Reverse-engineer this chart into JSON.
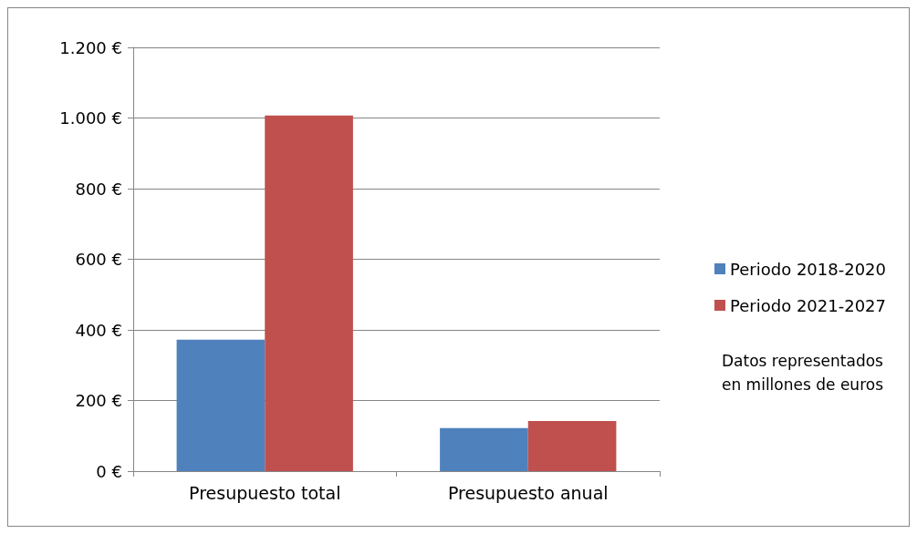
{
  "chart_data": {
    "type": "bar",
    "categories": [
      "Presupuesto total",
      "Presupuesto anual"
    ],
    "series": [
      {
        "name": "Periodo 2018-2020",
        "color": "#4f81bd",
        "values": [
          372,
          122
        ]
      },
      {
        "name": "Periodo 2021-2027",
        "color": "#c0504d",
        "values": [
          1007,
          142
        ]
      }
    ],
    "ylim": [
      0,
      1200
    ],
    "yticks": [
      {
        "value": 0,
        "label": "0 €"
      },
      {
        "value": 200,
        "label": "200 €"
      },
      {
        "value": 400,
        "label": "400 €"
      },
      {
        "value": 600,
        "label": "600 €"
      },
      {
        "value": 800,
        "label": "800 €"
      },
      {
        "value": 1000,
        "label": "1.000 €"
      },
      {
        "value": 1200,
        "label": "1.200 €"
      }
    ],
    "grid": "y",
    "legend": "right",
    "annotations": [
      "Datos representados\nen millones de euros"
    ]
  }
}
